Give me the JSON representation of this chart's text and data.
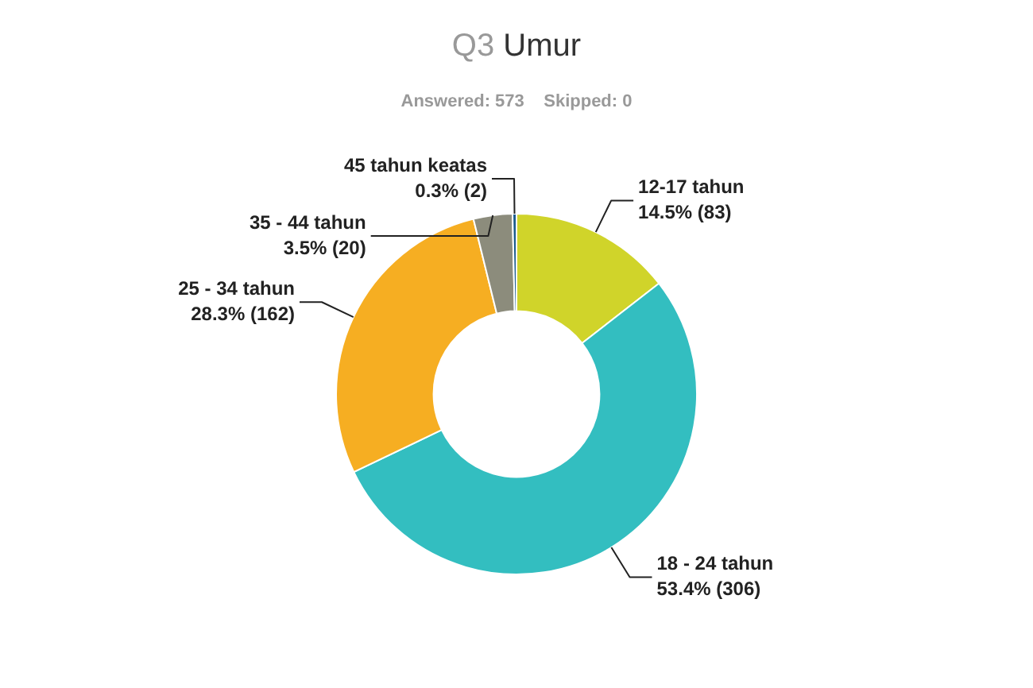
{
  "chart_data": {
    "type": "donut",
    "title": "Q3 Umur",
    "subtitle": "Answered: 573    Skipped: 0",
    "categories": [
      "12-17 tahun",
      "18 - 24 tahun",
      "25 - 34 tahun",
      "35 - 44 tahun",
      "45 tahun keatas"
    ],
    "values": [
      83,
      306,
      162,
      20,
      2
    ],
    "colors": [
      "#d0d42a",
      "#33bec0",
      "#f6ae22",
      "#8c8c7c",
      "#1a5a8c"
    ],
    "value_labels": [
      "14.5% (83)",
      "53.4% (306)",
      "28.3% (162)",
      "3.5% (20)",
      "0.3% (2)"
    ]
  }
}
